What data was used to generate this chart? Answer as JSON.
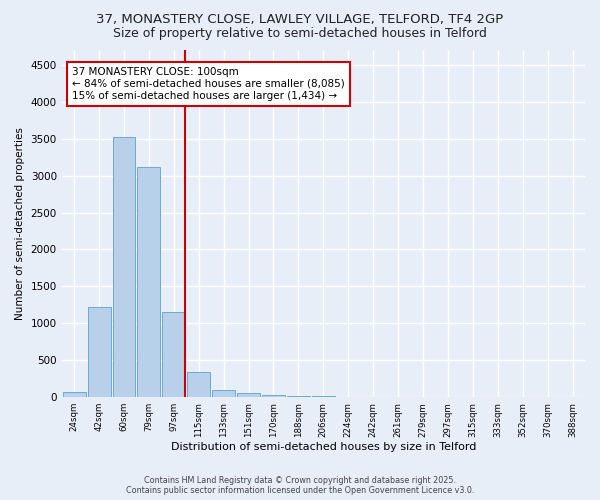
{
  "title1": "37, MONASTERY CLOSE, LAWLEY VILLAGE, TELFORD, TF4 2GP",
  "title2": "Size of property relative to semi-detached houses in Telford",
  "xlabel": "Distribution of semi-detached houses by size in Telford",
  "ylabel": "Number of semi-detached properties",
  "bins": [
    "24sqm",
    "42sqm",
    "60sqm",
    "79sqm",
    "97sqm",
    "115sqm",
    "133sqm",
    "151sqm",
    "170sqm",
    "188sqm",
    "206sqm",
    "224sqm",
    "242sqm",
    "261sqm",
    "279sqm",
    "297sqm",
    "315sqm",
    "333sqm",
    "352sqm",
    "370sqm",
    "388sqm"
  ],
  "values": [
    75,
    1220,
    3520,
    3110,
    1160,
    340,
    95,
    55,
    35,
    20,
    10,
    5,
    5,
    3,
    2,
    1,
    1,
    1,
    0,
    0,
    0
  ],
  "bar_color": "#b8d0ea",
  "bar_edge_color": "#6aaad4",
  "vline_x_index": 4,
  "vline_color": "#cc0000",
  "annotation_text": "37 MONASTERY CLOSE: 100sqm\n← 84% of semi-detached houses are smaller (8,085)\n15% of semi-detached houses are larger (1,434) →",
  "annotation_box_color": "#ffffff",
  "annotation_box_edge": "#cc0000",
  "ylim": [
    0,
    4700
  ],
  "yticks": [
    0,
    500,
    1000,
    1500,
    2000,
    2500,
    3000,
    3500,
    4000,
    4500
  ],
  "footer1": "Contains HM Land Registry data © Crown copyright and database right 2025.",
  "footer2": "Contains public sector information licensed under the Open Government Licence v3.0.",
  "bg_color": "#e8eef8",
  "grid_color": "#ffffff",
  "title_fontsize": 9.5,
  "subtitle_fontsize": 9.0,
  "annot_fontsize": 7.5
}
